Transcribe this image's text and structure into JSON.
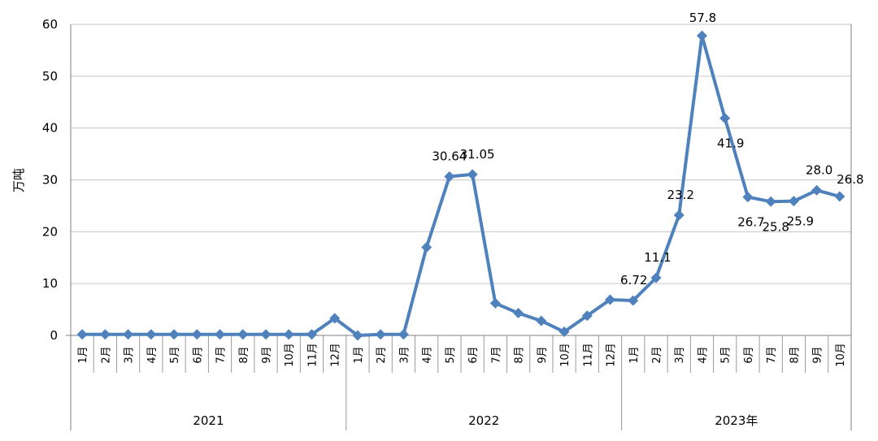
{
  "chart_data": {
    "type": "line",
    "ylabel": "万吨",
    "ylim": [
      0,
      60
    ],
    "yticks": [
      "0",
      "10",
      "20",
      "30",
      "40",
      "50",
      "60"
    ],
    "grid": true,
    "legend": "none",
    "line_color": "#4F81BD",
    "groups": [
      {
        "label": "2021",
        "months": [
          "1月",
          "2月",
          "3月",
          "4月",
          "5月",
          "6月",
          "7月",
          "8月",
          "9月",
          "10月",
          "11月",
          "12月"
        ]
      },
      {
        "label": "2022",
        "months": [
          "1月",
          "2月",
          "3月",
          "4月",
          "5月",
          "6月",
          "7月",
          "8月",
          "9月",
          "10月",
          "11月",
          "12月"
        ]
      },
      {
        "label": "2023年",
        "months": [
          "1月",
          "2月",
          "3月",
          "4月",
          "5月",
          "6月",
          "7月",
          "8月",
          "9月",
          "10月"
        ]
      }
    ],
    "series": [
      {
        "values": [
          0.2,
          0.2,
          0.2,
          0.2,
          0.2,
          0.2,
          0.2,
          0.2,
          0.2,
          0.2,
          0.2,
          3.3,
          0.0,
          0.2,
          0.2,
          17.0,
          30.64,
          31.05,
          6.2,
          4.3,
          2.8,
          0.7,
          3.8,
          6.9,
          6.72,
          11.1,
          23.2,
          57.8,
          41.9,
          26.7,
          25.8,
          25.9,
          28.0,
          26.8
        ],
        "labels": [
          "",
          "",
          "",
          "",
          "",
          "",
          "",
          "",
          "",
          "",
          "",
          "",
          "",
          "",
          "",
          "",
          "30.64",
          "31.05",
          "",
          "",
          "",
          "",
          "",
          "",
          "6.72",
          "11.1",
          "23.2",
          "57.8",
          "41.9",
          "26.7",
          "25.8",
          "25.9",
          "28.0",
          "26.8"
        ]
      }
    ]
  }
}
